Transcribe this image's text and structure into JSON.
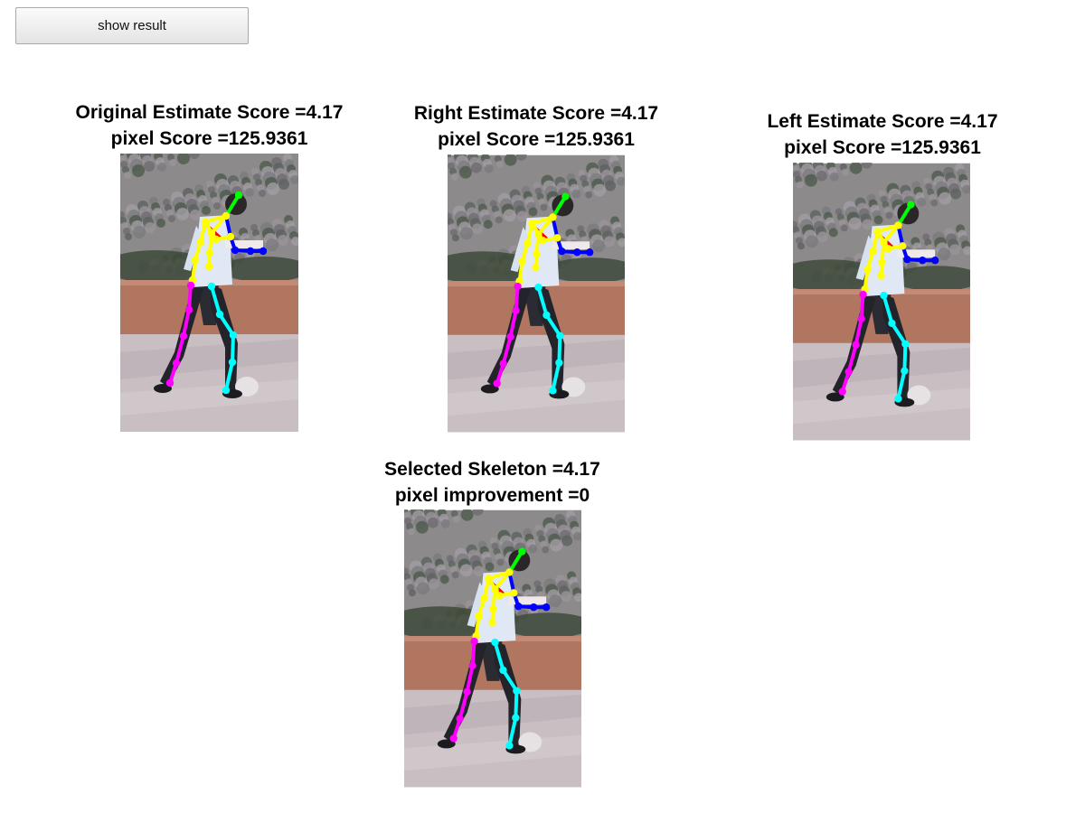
{
  "toolbar": {
    "show_result_label": "show result"
  },
  "panels": [
    {
      "id": "original",
      "title_line1": "Original Estimate Score =4.17",
      "title_line2": "pixel Score =125.9361"
    },
    {
      "id": "right",
      "title_line1": "Right Estimate Score =4.17",
      "title_line2": "pixel Score =125.9361"
    },
    {
      "id": "left",
      "title_line1": "Left Estimate Score =4.17",
      "title_line2": "pixel Score =125.9361"
    },
    {
      "id": "selected",
      "title_line1": "Selected Skeleton =4.17",
      "title_line2": "pixel improvement =0"
    }
  ],
  "skeleton_colors": {
    "head": "#00ff00",
    "torso": "#ffff00",
    "right_arm": "#0000ff",
    "shoulder_mark": "#ff0000",
    "left_leg": "#ff00ff",
    "right_leg": "#00ffff"
  }
}
